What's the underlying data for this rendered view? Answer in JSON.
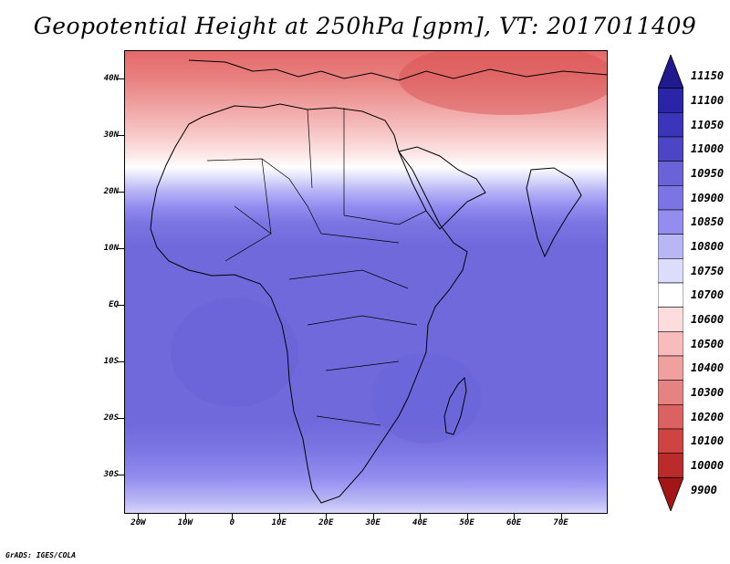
{
  "title": "Geopotential Height at 250hPa [gpm], VT: 2017011409",
  "credit": "GrADS: IGES/COLA",
  "map": {
    "lat_labels": [
      "40N",
      "30N",
      "20N",
      "10N",
      "EQ",
      "10S",
      "20S",
      "30S"
    ],
    "lon_labels": [
      "20W",
      "10W",
      "0",
      "10E",
      "20E",
      "30E",
      "40E",
      "50E",
      "60E",
      "70E"
    ],
    "lat_range": [
      -37,
      45
    ],
    "lon_range": [
      -23,
      80
    ]
  },
  "colorbar": {
    "levels": [
      "11150",
      "11100",
      "11050",
      "11000",
      "10950",
      "10900",
      "10850",
      "10800",
      "10750",
      "10700",
      "10600",
      "10500",
      "10400",
      "10300",
      "10200",
      "10100",
      "10000",
      "9900"
    ],
    "colors": [
      "#211a8e",
      "#2a24a8",
      "#3b35bb",
      "#4c46c6",
      "#6a63d8",
      "#7b75e3",
      "#938df0",
      "#b9b6f5",
      "#dcdcfb",
      "#ffffff",
      "#fcdcdc",
      "#f8bcbc",
      "#f1a0a0",
      "#e78282",
      "#dc6161",
      "#d04343",
      "#bb2b2b",
      "#a31616"
    ]
  },
  "chart_data": {
    "type": "heatmap",
    "title": "Geopotential Height at 250hPa [gpm], VT: 2017011409",
    "x_ticks": [
      "20W",
      "10W",
      "0",
      "10E",
      "20E",
      "30E",
      "40E",
      "50E",
      "60E",
      "70E"
    ],
    "y_ticks": [
      "40N",
      "30N",
      "20N",
      "10N",
      "EQ",
      "10S",
      "20S",
      "30S"
    ],
    "colorbar_levels": [
      9900,
      10000,
      10100,
      10200,
      10300,
      10400,
      10500,
      10600,
      10700,
      10750,
      10800,
      10850,
      10900,
      10950,
      11000,
      11050,
      11100,
      11150
    ],
    "zonal_profile": [
      {
        "lat": 42,
        "value": 10150
      },
      {
        "lat": 35,
        "value": 10400
      },
      {
        "lat": 28,
        "value": 10600
      },
      {
        "lat": 22,
        "value": 10750
      },
      {
        "lat": 18,
        "value": 10850
      },
      {
        "lat": 12,
        "value": 10920
      },
      {
        "lat": 0,
        "value": 10950
      },
      {
        "lat": -10,
        "value": 10960
      },
      {
        "lat": -20,
        "value": 10950
      },
      {
        "lat": -28,
        "value": 10900
      },
      {
        "lat": -34,
        "value": 10800
      }
    ]
  }
}
